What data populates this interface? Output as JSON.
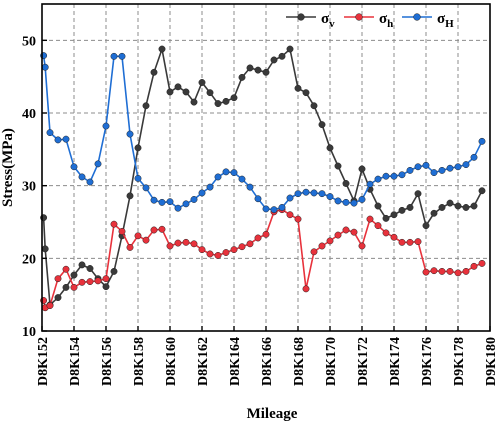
{
  "chart_data": {
    "type": "line",
    "xlabel": "Mileage",
    "ylabel": "Stress(MPa)",
    "ylim": [
      10,
      55
    ],
    "yticks": [
      10,
      20,
      30,
      40,
      50
    ],
    "xticks": [
      "D8K152",
      "D8K154",
      "D8K156",
      "D8K158",
      "D8K160",
      "D8K162",
      "D8K164",
      "D8K166",
      "D8K168",
      "D8K170",
      "D8K172",
      "D8K174",
      "D9K176",
      "D9K178",
      "D9K180"
    ],
    "xtick_positions": [
      152,
      154,
      156,
      158,
      160,
      162,
      164,
      166,
      168,
      170,
      172,
      174,
      176,
      178,
      180
    ],
    "xlim": [
      152,
      180
    ],
    "grid": true,
    "legend_position": "top-right",
    "series": [
      {
        "name": "σv",
        "legend_main": "σ",
        "legend_sub": "v",
        "color": "#3a3a3a",
        "x": [
          152.1,
          152.2,
          152.5,
          153.0,
          153.5,
          154.0,
          154.5,
          155.0,
          155.5,
          156.0,
          156.5,
          157.0,
          157.5,
          158.0,
          158.5,
          159.0,
          159.5,
          160.0,
          160.5,
          161.0,
          161.5,
          162.0,
          162.5,
          163.0,
          163.5,
          164.0,
          164.5,
          165.0,
          165.5,
          166.0,
          166.5,
          167.0,
          167.5,
          168.0,
          168.5,
          169.0,
          169.5,
          170.0,
          170.5,
          171.0,
          171.5,
          172.0,
          172.5,
          173.0,
          173.5,
          174.0,
          174.5,
          175.0,
          175.5,
          176.0,
          176.5,
          177.0,
          177.5,
          178.0,
          178.5,
          179.0,
          179.5
        ],
        "y": [
          25.6,
          21.3,
          13.6,
          14.6,
          16.0,
          17.7,
          19.1,
          18.6,
          17.2,
          16.1,
          18.2,
          23.1,
          28.6,
          35.2,
          41.0,
          45.6,
          48.8,
          42.9,
          43.6,
          42.9,
          41.5,
          44.2,
          42.8,
          41.3,
          41.6,
          42.1,
          44.9,
          46.2,
          45.9,
          45.6,
          47.3,
          47.8,
          48.8,
          43.4,
          42.8,
          41.0,
          38.4,
          35.2,
          32.7,
          30.3,
          27.9,
          32.3,
          29.5,
          27.2,
          25.5,
          26.0,
          26.6,
          27.0,
          28.9,
          24.5,
          26.2,
          27.0,
          27.6,
          27.2,
          27.0,
          27.2,
          29.3
        ]
      },
      {
        "name": "σh",
        "legend_main": "σ",
        "legend_sub": "h",
        "color": "#e8323c",
        "x": [
          152.1,
          152.2,
          152.5,
          153.0,
          153.5,
          154.0,
          154.5,
          155.0,
          155.5,
          156.0,
          156.5,
          157.0,
          157.5,
          158.0,
          158.5,
          159.0,
          159.5,
          160.0,
          160.5,
          161.0,
          161.5,
          162.0,
          162.5,
          163.0,
          163.5,
          164.0,
          164.5,
          165.0,
          165.5,
          166.0,
          166.5,
          167.0,
          167.5,
          168.0,
          168.5,
          169.0,
          169.5,
          170.0,
          170.5,
          171.0,
          171.5,
          172.0,
          172.5,
          173.0,
          173.5,
          174.0,
          174.5,
          175.0,
          175.5,
          176.0,
          176.5,
          177.0,
          177.5,
          178.0,
          178.5,
          179.0,
          179.5
        ],
        "y": [
          14.2,
          13.2,
          13.5,
          17.2,
          18.5,
          16.0,
          16.7,
          16.8,
          16.9,
          17.2,
          24.7,
          23.7,
          21.5,
          23.1,
          22.5,
          23.9,
          24.0,
          21.7,
          22.1,
          22.2,
          22.0,
          21.2,
          20.6,
          20.4,
          20.8,
          21.2,
          21.6,
          22.0,
          22.8,
          23.3,
          26.4,
          26.7,
          26.0,
          25.4,
          15.8,
          20.9,
          21.7,
          22.4,
          23.2,
          23.9,
          23.6,
          21.7,
          25.4,
          24.5,
          23.5,
          22.9,
          22.2,
          22.2,
          22.3,
          18.1,
          18.3,
          18.2,
          18.2,
          18.0,
          18.2,
          18.9,
          19.3
        ]
      },
      {
        "name": "σH",
        "legend_main": "σ",
        "legend_sub": "H",
        "color": "#1f6ed4",
        "x": [
          152.1,
          152.2,
          152.5,
          153.0,
          153.5,
          154.0,
          154.5,
          155.0,
          155.5,
          156.0,
          156.5,
          157.0,
          157.5,
          158.0,
          158.5,
          159.0,
          159.5,
          160.0,
          160.5,
          161.0,
          161.5,
          162.0,
          162.5,
          163.0,
          163.5,
          164.0,
          164.5,
          165.0,
          165.5,
          166.0,
          166.5,
          167.0,
          167.5,
          168.0,
          168.5,
          169.0,
          169.5,
          170.0,
          170.5,
          171.0,
          171.5,
          172.0,
          172.5,
          173.0,
          173.5,
          174.0,
          174.5,
          175.0,
          175.5,
          176.0,
          176.5,
          177.0,
          177.5,
          178.0,
          178.5,
          179.0,
          179.5
        ],
        "y": [
          47.9,
          46.3,
          37.3,
          36.3,
          36.4,
          32.6,
          31.2,
          30.5,
          33.0,
          38.2,
          47.8,
          47.8,
          37.1,
          31.0,
          29.7,
          28.0,
          27.7,
          27.8,
          26.9,
          27.5,
          28.1,
          29.0,
          29.8,
          31.2,
          31.9,
          31.8,
          30.9,
          29.8,
          28.2,
          26.8,
          26.7,
          27.0,
          28.3,
          28.9,
          29.1,
          29.0,
          28.9,
          28.5,
          27.9,
          27.7,
          27.6,
          28.1,
          30.2,
          30.9,
          31.3,
          31.3,
          31.5,
          32.1,
          32.6,
          32.8,
          31.8,
          32.1,
          32.4,
          32.6,
          32.9,
          33.9,
          36.1
        ]
      }
    ]
  }
}
